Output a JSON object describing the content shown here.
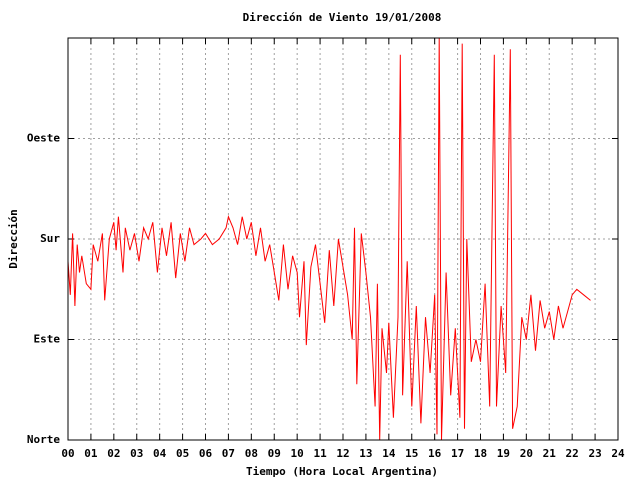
{
  "chart_data": {
    "type": "line",
    "title": "Dirección de Viento 19/01/2008",
    "x_label": "Tiempo (Hora Local Argentina)",
    "y_label": "Dirección",
    "xlim": [
      0,
      24
    ],
    "xticks": [
      {
        "value": 0,
        "label": "00"
      },
      {
        "value": 1,
        "label": "01"
      },
      {
        "value": 2,
        "label": "02"
      },
      {
        "value": 3,
        "label": "03"
      },
      {
        "value": 4,
        "label": "04"
      },
      {
        "value": 5,
        "label": "05"
      },
      {
        "value": 6,
        "label": "06"
      },
      {
        "value": 7,
        "label": "07"
      },
      {
        "value": 8,
        "label": "08"
      },
      {
        "value": 9,
        "label": "09"
      },
      10,
      11,
      12,
      13,
      14,
      15,
      16,
      17,
      18,
      19,
      20,
      21,
      22,
      23,
      24
    ],
    "ylim": [
      0,
      360
    ],
    "yticks": [
      {
        "value": 0,
        "label": "Norte"
      },
      {
        "value": 90,
        "label": "Este"
      },
      {
        "value": 180,
        "label": "Sur"
      },
      {
        "value": 270,
        "label": "Oeste"
      }
    ],
    "grid": true,
    "series": [
      {
        "color": "#ff0000",
        "x": [
          0.0,
          0.1,
          0.2,
          0.3,
          0.4,
          0.5,
          0.6,
          0.8,
          1.0,
          1.1,
          1.3,
          1.5,
          1.6,
          1.8,
          2.0,
          2.1,
          2.2,
          2.4,
          2.5,
          2.7,
          2.9,
          3.1,
          3.3,
          3.5,
          3.7,
          3.9,
          4.1,
          4.3,
          4.5,
          4.7,
          4.9,
          5.1,
          5.3,
          5.5,
          5.8,
          6.0,
          6.3,
          6.6,
          6.9,
          7.0,
          7.2,
          7.4,
          7.6,
          7.8,
          8.0,
          8.2,
          8.4,
          8.6,
          8.8,
          9.0,
          9.2,
          9.4,
          9.6,
          9.8,
          10.0,
          10.1,
          10.3,
          10.4,
          10.6,
          10.8,
          11.0,
          11.2,
          11.4,
          11.6,
          11.8,
          12.0,
          12.2,
          12.4,
          12.5,
          12.6,
          12.8,
          13.0,
          13.2,
          13.4,
          13.5,
          13.6,
          13.7,
          13.9,
          14.0,
          14.2,
          14.4,
          14.5,
          14.6,
          14.8,
          15.0,
          15.2,
          15.4,
          15.6,
          15.8,
          16.0,
          16.1,
          16.2,
          16.3,
          16.5,
          16.7,
          16.9,
          17.0,
          17.1,
          17.2,
          17.3,
          17.4,
          17.6,
          17.8,
          18.0,
          18.2,
          18.4,
          18.6,
          18.7,
          18.9,
          19.1,
          19.3,
          19.4,
          19.6,
          19.8,
          20.0,
          20.2,
          20.4,
          20.6,
          20.8,
          21.0,
          21.2,
          21.4,
          21.6,
          21.8,
          22.0,
          22.2,
          22.5,
          22.8
        ],
        "values": [
          160,
          130,
          185,
          120,
          175,
          150,
          165,
          140,
          135,
          175,
          160,
          185,
          125,
          180,
          195,
          170,
          200,
          150,
          190,
          170,
          185,
          160,
          190,
          180,
          195,
          150,
          190,
          165,
          195,
          145,
          185,
          160,
          190,
          175,
          180,
          185,
          175,
          180,
          190,
          200,
          190,
          175,
          200,
          180,
          195,
          165,
          190,
          160,
          175,
          150,
          125,
          175,
          135,
          165,
          150,
          110,
          160,
          85,
          155,
          175,
          140,
          105,
          170,
          120,
          180,
          155,
          130,
          90,
          190,
          50,
          185,
          150,
          110,
          30,
          140,
          0,
          100,
          60,
          105,
          20,
          110,
          345,
          40,
          160,
          30,
          120,
          15,
          110,
          60,
          130,
          5,
          360,
          0,
          150,
          40,
          100,
          60,
          20,
          355,
          10,
          180,
          70,
          90,
          70,
          140,
          30,
          345,
          30,
          120,
          60,
          350,
          10,
          30,
          110,
          90,
          130,
          80,
          125,
          100,
          115,
          90,
          120,
          100,
          115,
          130,
          135,
          130,
          125
        ]
      }
    ]
  }
}
